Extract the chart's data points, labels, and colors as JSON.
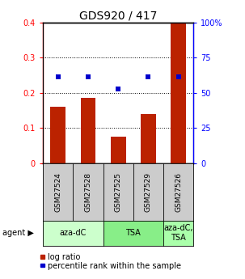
{
  "title": "GDS920 / 417",
  "samples": [
    "GSM27524",
    "GSM27528",
    "GSM27525",
    "GSM27529",
    "GSM27526"
  ],
  "log_ratio": [
    0.16,
    0.185,
    0.075,
    0.14,
    0.4
  ],
  "percentile_rank": [
    61.5,
    61.5,
    52.5,
    61.5,
    61.5
  ],
  "bar_color": "#bb2200",
  "dot_color": "#0000cc",
  "ylim_left": [
    0,
    0.4
  ],
  "ylim_right": [
    0,
    100
  ],
  "yticks_left": [
    0,
    0.1,
    0.2,
    0.3,
    0.4
  ],
  "ytick_labels_left": [
    "0",
    "0.1",
    "0.2",
    "0.3",
    "0.4"
  ],
  "yticks_right": [
    0,
    25,
    50,
    75,
    100
  ],
  "ytick_labels_right": [
    "0",
    "25",
    "50",
    "75",
    "100%"
  ],
  "groups": [
    {
      "label": "aza-dC",
      "start": 0,
      "end": 2,
      "color": "#ccffcc"
    },
    {
      "label": "TSA",
      "start": 2,
      "end": 4,
      "color": "#88ee88"
    },
    {
      "label": "aza-dC,\nTSA",
      "start": 4,
      "end": 5,
      "color": "#aaffaa"
    }
  ],
  "legend_items": [
    {
      "label": "log ratio",
      "color": "#bb2200"
    },
    {
      "label": "percentile rank within the sample",
      "color": "#0000cc"
    }
  ],
  "sample_box_color": "#cccccc",
  "bar_width": 0.5,
  "title_fontsize": 10,
  "tick_fontsize": 7,
  "sample_fontsize": 6.5,
  "group_fontsize": 7,
  "legend_fontsize": 7,
  "agent_fontsize": 7
}
